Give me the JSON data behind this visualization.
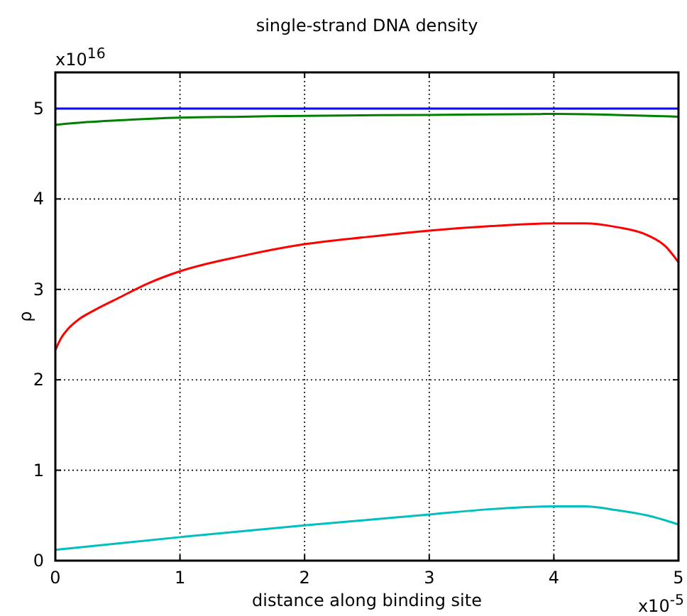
{
  "chart_data": {
    "type": "line",
    "title": "single-strand DNA density",
    "xlabel": "distance along binding site",
    "ylabel": "ρ",
    "annotations": [
      "x10$^{16}$",
      "x10$^{-5}$"
    ],
    "xlim": [
      0,
      5
    ],
    "xticks": [
      0,
      1,
      2,
      3,
      4,
      5
    ],
    "ylim": [
      0,
      5.4
    ],
    "yticks": [
      0,
      1,
      2,
      3,
      4,
      5
    ],
    "grid": true,
    "line_style": "solid",
    "series": [
      {
        "color": "#0000ff",
        "x": [
          0,
          1,
          2,
          3,
          4,
          5
        ],
        "values": [
          5,
          5,
          5,
          5,
          5,
          5
        ]
      },
      {
        "color": "#008000",
        "x": [
          0,
          0.25,
          0.5,
          1,
          1.5,
          2,
          3,
          4,
          4.5,
          5
        ],
        "values": [
          4.82,
          4.85,
          4.87,
          4.9,
          4.91,
          4.92,
          4.93,
          4.94,
          4.93,
          4.91
        ]
      },
      {
        "color": "#ff0000",
        "x": [
          0,
          0.05,
          0.1,
          0.2,
          0.3,
          0.5,
          0.75,
          1,
          1.5,
          2,
          2.5,
          3,
          3.5,
          4,
          4.25,
          4.5,
          4.75,
          4.9,
          5
        ],
        "values": [
          2.33,
          2.47,
          2.56,
          2.68,
          2.76,
          2.9,
          3.07,
          3.2,
          3.37,
          3.5,
          3.58,
          3.65,
          3.7,
          3.73,
          3.73,
          3.69,
          3.6,
          3.47,
          3.3
        ]
      },
      {
        "color": "#00bfbf",
        "x": [
          0,
          1,
          2,
          3,
          3.5,
          4,
          4.25,
          4.5,
          4.75,
          5
        ],
        "values": [
          0.12,
          0.26,
          0.39,
          0.51,
          0.57,
          0.6,
          0.6,
          0.56,
          0.5,
          0.4
        ]
      }
    ]
  }
}
